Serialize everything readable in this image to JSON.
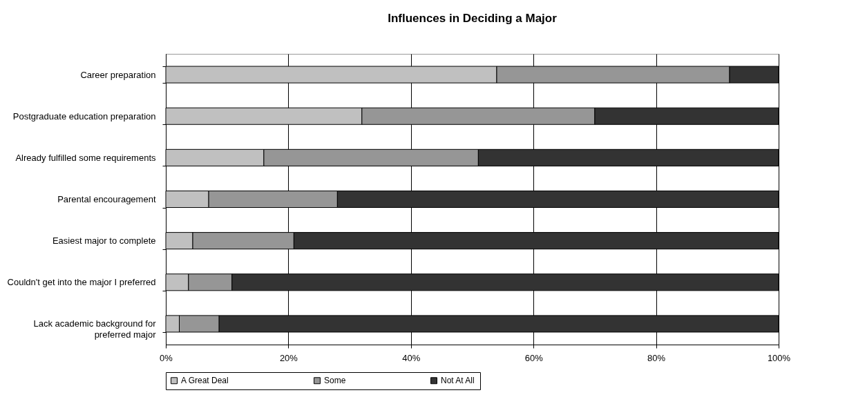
{
  "chart_data": {
    "type": "bar",
    "orientation": "horizontal",
    "stacked": true,
    "title": "Influences in Deciding a Major",
    "categories": [
      "Career preparation",
      "Postgraduate education preparation",
      "Already fulfilled some requirements",
      "Parental encouragement",
      "Easiest major to complete",
      "Couldn't get into the major I preferred",
      "Lack academic background for preferred major"
    ],
    "series": [
      {
        "name": "A Great Deal",
        "color": "#c0c0c0",
        "values": [
          54,
          32,
          16,
          7,
          4.4,
          3.7,
          2.2
        ]
      },
      {
        "name": "Some",
        "color": "#969696",
        "values": [
          38,
          38,
          35,
          21,
          16.5,
          7.1,
          6.5
        ]
      },
      {
        "name": "Not At All",
        "color": "#333333",
        "values": [
          8,
          30,
          49,
          72,
          79.1,
          89.2,
          91.3
        ]
      }
    ],
    "xlim": [
      0,
      100
    ],
    "xticks": [
      {
        "value": 0,
        "label": "0%"
      },
      {
        "value": 20,
        "label": "20%"
      },
      {
        "value": 40,
        "label": "40%"
      },
      {
        "value": 60,
        "label": "60%"
      },
      {
        "value": 80,
        "label": "80%"
      },
      {
        "value": 100,
        "label": "100%"
      }
    ],
    "grid": "x",
    "legend": "bottom"
  }
}
